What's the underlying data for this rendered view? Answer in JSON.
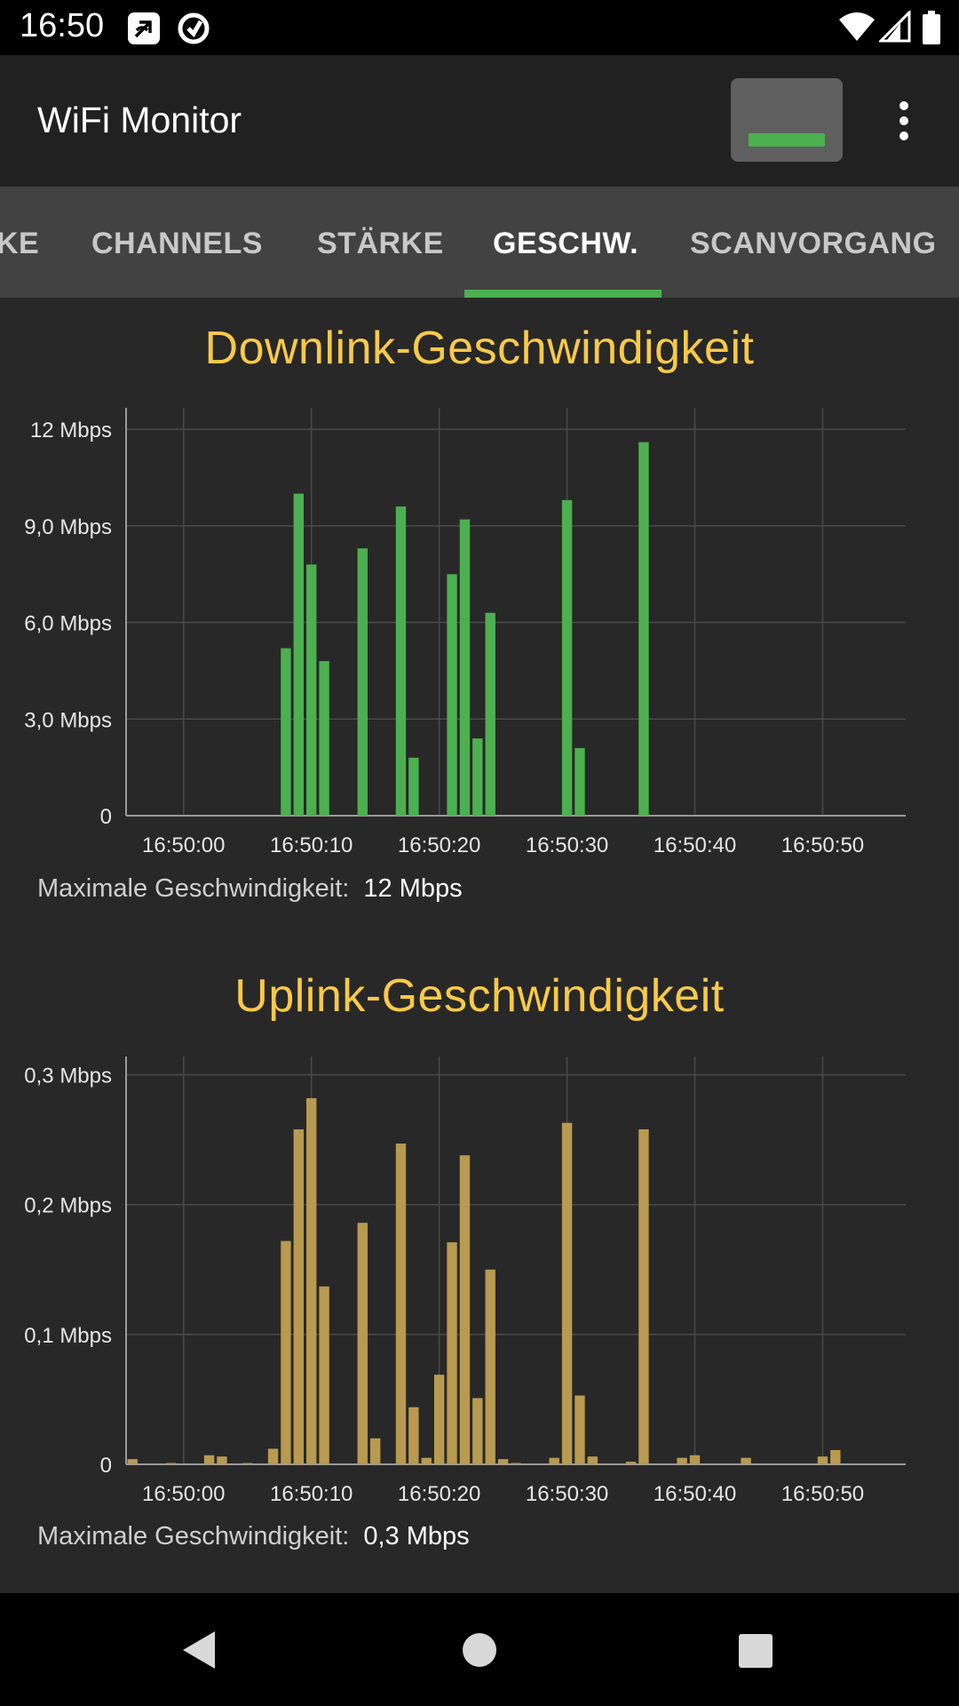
{
  "status_bar": {
    "time": "16:50",
    "icons": [
      "nfc-icon",
      "sync-icon",
      "wifi-icon",
      "cell-signal-icon",
      "battery-icon"
    ]
  },
  "app_bar": {
    "title": "WiFi Monitor",
    "signal_button_icon": "signal-strength-icon",
    "overflow_icon": "more-vert-icon"
  },
  "tabs": {
    "items": [
      "KE",
      "CHANNELS",
      "STÄRKE",
      "GESCHW.",
      "SCANVORGANG"
    ],
    "active_index": 3,
    "indicator_color": "#4caf50"
  },
  "downlink": {
    "title": "Downlink-Geschwindigkeit",
    "max_label": "Maximale Geschwindigkeit:",
    "max_value": "12 Mbps"
  },
  "uplink": {
    "title": "Uplink-Geschwindigkeit",
    "max_label": "Maximale Geschwindigkeit:",
    "max_value": "0,3 Mbps"
  },
  "chart_data": [
    {
      "type": "bar",
      "title": "Downlink-Geschwindigkeit",
      "unit": "Mbps",
      "color": "#4cb050",
      "ylim": [
        0,
        12.5
      ],
      "yticks": [
        0,
        3,
        6,
        9,
        12
      ],
      "ytick_labels": [
        "0",
        "3,0 Mbps",
        "6,0 Mbps",
        "9,0 Mbps",
        "12 Mbps"
      ],
      "xticks": [
        0,
        10,
        20,
        30,
        40,
        50
      ],
      "xtick_labels": [
        "16:50:00",
        "16:50:10",
        "16:50:20",
        "16:50:30",
        "16:50:40",
        "16:50:50"
      ],
      "xlim": [
        -4,
        56
      ],
      "grid": true,
      "points": [
        [
          8,
          5.2
        ],
        [
          9,
          10.0
        ],
        [
          10,
          7.8
        ],
        [
          11,
          4.8
        ],
        [
          14,
          8.3
        ],
        [
          17,
          9.6
        ],
        [
          18,
          1.8
        ],
        [
          21,
          7.5
        ],
        [
          22,
          9.2
        ],
        [
          23,
          2.4
        ],
        [
          24,
          6.3
        ],
        [
          30,
          9.8
        ],
        [
          31,
          2.1
        ],
        [
          36,
          11.6
        ]
      ]
    },
    {
      "type": "bar",
      "title": "Uplink-Geschwindigkeit",
      "unit": "Mbps",
      "color": "#b89a50",
      "ylim": [
        0,
        0.31
      ],
      "yticks": [
        0,
        0.1,
        0.2,
        0.3
      ],
      "ytick_labels": [
        "0",
        "0,1 Mbps",
        "0,2 Mbps",
        "0,3 Mbps"
      ],
      "xticks": [
        0,
        10,
        20,
        30,
        40,
        50
      ],
      "xtick_labels": [
        "16:50:00",
        "16:50:10",
        "16:50:20",
        "16:50:30",
        "16:50:40",
        "16:50:50"
      ],
      "xlim": [
        -4,
        56
      ],
      "grid": true,
      "points": [
        [
          -4,
          0.004
        ],
        [
          -1,
          0.001
        ],
        [
          2,
          0.007
        ],
        [
          3,
          0.006
        ],
        [
          5,
          0.001
        ],
        [
          7,
          0.012
        ],
        [
          8,
          0.172
        ],
        [
          9,
          0.258
        ],
        [
          10,
          0.282
        ],
        [
          11,
          0.137
        ],
        [
          14,
          0.186
        ],
        [
          15,
          0.02
        ],
        [
          17,
          0.247
        ],
        [
          18,
          0.044
        ],
        [
          19,
          0.005
        ],
        [
          20,
          0.069
        ],
        [
          21,
          0.171
        ],
        [
          22,
          0.238
        ],
        [
          23,
          0.051
        ],
        [
          24,
          0.15
        ],
        [
          25,
          0.004
        ],
        [
          26,
          0.001
        ],
        [
          29,
          0.005
        ],
        [
          30,
          0.263
        ],
        [
          31,
          0.053
        ],
        [
          32,
          0.006
        ],
        [
          35,
          0.002
        ],
        [
          36,
          0.258
        ],
        [
          39,
          0.005
        ],
        [
          40,
          0.007
        ],
        [
          44,
          0.005
        ],
        [
          50,
          0.006
        ],
        [
          51,
          0.011
        ]
      ]
    }
  ]
}
